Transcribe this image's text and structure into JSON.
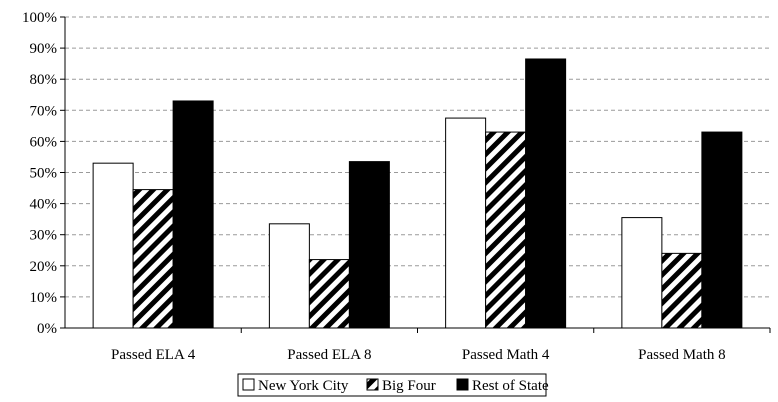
{
  "chart_data": {
    "type": "bar",
    "title": "",
    "xlabel": "",
    "ylabel": "",
    "ylim": [
      0,
      100
    ],
    "y_ticks": [
      "0%",
      "10%",
      "20%",
      "30%",
      "40%",
      "50%",
      "60%",
      "70%",
      "80%",
      "90%",
      "100%"
    ],
    "grid": "horizontal dashed",
    "legend_position": "bottom",
    "categories": [
      "Passed ELA 4",
      "Passed ELA 8",
      "Passed Math 4",
      "Passed Math 8"
    ],
    "series": [
      {
        "name": "New York City",
        "values": [
          53,
          33.5,
          67.5,
          35.5
        ],
        "fill": "white",
        "color": "#ffffff"
      },
      {
        "name": "Big Four",
        "values": [
          44.5,
          22,
          63,
          24
        ],
        "fill": "diagonal-hatch",
        "color": "#000000"
      },
      {
        "name": "Rest of State",
        "values": [
          73,
          53.5,
          86.5,
          63
        ],
        "fill": "solid",
        "color": "#000000"
      }
    ]
  }
}
